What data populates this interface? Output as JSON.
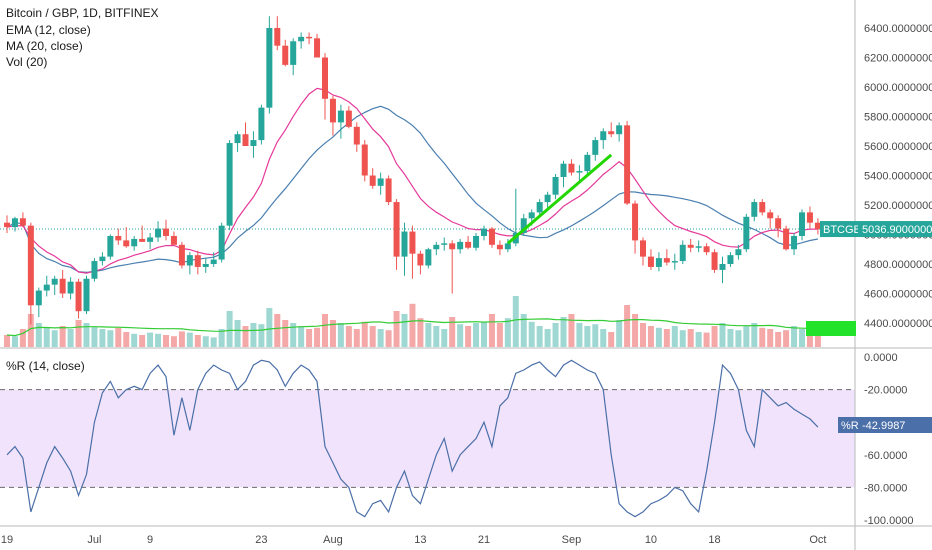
{
  "chart_data": {
    "type": "candlestick",
    "title": "Bitcoin / GBP, 1D, BITFINEX",
    "symbol_tag": "BTCGBP",
    "last_price": "5036.90000000",
    "indicator_labels": [
      "EMA (12, close)",
      "MA (20, close)",
      "Vol (20)"
    ],
    "volume_tag": "",
    "price_axis": {
      "ticks": [
        "6400.00000000",
        "6200.00000000",
        "6000.00000000",
        "5800.00000000",
        "5600.00000000",
        "5400.00000000",
        "5200.00000000",
        "5000.00000000",
        "4800.00000000",
        "4600.00000000",
        "4400.00000000"
      ],
      "ylim": [
        4300,
        6550
      ]
    },
    "date_axis": {
      "ticks": [
        "19",
        "Jul",
        "9",
        "23",
        "Aug",
        "13",
        "21",
        "Sep",
        "10",
        "18",
        "Oct"
      ],
      "tick_index": [
        0,
        11,
        18,
        32,
        41,
        52,
        60,
        71,
        81,
        89,
        102
      ]
    },
    "candles": [
      {
        "o": 5080,
        "h": 5130,
        "l": 5010,
        "c": 5050
      },
      {
        "o": 5050,
        "h": 5120,
        "l": 5020,
        "c": 5110
      },
      {
        "o": 5110,
        "h": 5150,
        "l": 5050,
        "c": 5060
      },
      {
        "o": 5060,
        "h": 5080,
        "l": 4390,
        "c": 4520
      },
      {
        "o": 4520,
        "h": 4640,
        "l": 4440,
        "c": 4620
      },
      {
        "o": 4620,
        "h": 4720,
        "l": 4580,
        "c": 4660
      },
      {
        "o": 4660,
        "h": 4720,
        "l": 4590,
        "c": 4700
      },
      {
        "o": 4700,
        "h": 4760,
        "l": 4570,
        "c": 4600
      },
      {
        "o": 4600,
        "h": 4710,
        "l": 4560,
        "c": 4680
      },
      {
        "o": 4680,
        "h": 4700,
        "l": 4430,
        "c": 4480
      },
      {
        "o": 4480,
        "h": 4720,
        "l": 4460,
        "c": 4700
      },
      {
        "o": 4700,
        "h": 4840,
        "l": 4680,
        "c": 4820
      },
      {
        "o": 4820,
        "h": 4880,
        "l": 4790,
        "c": 4850
      },
      {
        "o": 4850,
        "h": 5000,
        "l": 4830,
        "c": 4990
      },
      {
        "o": 4990,
        "h": 5040,
        "l": 4930,
        "c": 4960
      },
      {
        "o": 4960,
        "h": 5050,
        "l": 4910,
        "c": 4920
      },
      {
        "o": 4920,
        "h": 4990,
        "l": 4890,
        "c": 4970
      },
      {
        "o": 4970,
        "h": 5060,
        "l": 4950,
        "c": 4950
      },
      {
        "o": 4950,
        "h": 5010,
        "l": 4900,
        "c": 4980
      },
      {
        "o": 4980,
        "h": 5090,
        "l": 4950,
        "c": 5040
      },
      {
        "o": 5040,
        "h": 5100,
        "l": 4960,
        "c": 4990
      },
      {
        "o": 4990,
        "h": 5020,
        "l": 4940,
        "c": 4930
      },
      {
        "o": 4930,
        "h": 4950,
        "l": 4770,
        "c": 4790
      },
      {
        "o": 4790,
        "h": 4880,
        "l": 4730,
        "c": 4860
      },
      {
        "o": 4860,
        "h": 4890,
        "l": 4730,
        "c": 4780
      },
      {
        "o": 4780,
        "h": 4840,
        "l": 4740,
        "c": 4800
      },
      {
        "o": 4800,
        "h": 4880,
        "l": 4780,
        "c": 4830
      },
      {
        "o": 4830,
        "h": 5080,
        "l": 4810,
        "c": 5060
      },
      {
        "o": 5060,
        "h": 5640,
        "l": 5030,
        "c": 5620
      },
      {
        "o": 5620,
        "h": 5700,
        "l": 5560,
        "c": 5680
      },
      {
        "o": 5680,
        "h": 5760,
        "l": 5600,
        "c": 5600
      },
      {
        "o": 5600,
        "h": 5700,
        "l": 5520,
        "c": 5640
      },
      {
        "o": 5640,
        "h": 5880,
        "l": 5610,
        "c": 5860
      },
      {
        "o": 5860,
        "h": 6480,
        "l": 5820,
        "c": 6400
      },
      {
        "o": 6400,
        "h": 6480,
        "l": 6250,
        "c": 6280
      },
      {
        "o": 6280,
        "h": 6320,
        "l": 6140,
        "c": 6150
      },
      {
        "o": 6150,
        "h": 6330,
        "l": 6080,
        "c": 6310
      },
      {
        "o": 6310,
        "h": 6370,
        "l": 6260,
        "c": 6340
      },
      {
        "o": 6340,
        "h": 6370,
        "l": 6290,
        "c": 6330
      },
      {
        "o": 6330,
        "h": 6360,
        "l": 6220,
        "c": 6200
      },
      {
        "o": 6200,
        "h": 6230,
        "l": 5780,
        "c": 5920
      },
      {
        "o": 5920,
        "h": 5940,
        "l": 5670,
        "c": 5760
      },
      {
        "o": 5760,
        "h": 5880,
        "l": 5650,
        "c": 5840
      },
      {
        "o": 5840,
        "h": 5870,
        "l": 5720,
        "c": 5730
      },
      {
        "o": 5730,
        "h": 5760,
        "l": 5560,
        "c": 5610
      },
      {
        "o": 5610,
        "h": 5640,
        "l": 5360,
        "c": 5400
      },
      {
        "o": 5400,
        "h": 5450,
        "l": 5310,
        "c": 5330
      },
      {
        "o": 5330,
        "h": 5420,
        "l": 5270,
        "c": 5380
      },
      {
        "o": 5380,
        "h": 5400,
        "l": 5200,
        "c": 5220
      },
      {
        "o": 5220,
        "h": 5240,
        "l": 4760,
        "c": 4850
      },
      {
        "o": 4850,
        "h": 5080,
        "l": 4720,
        "c": 5020
      },
      {
        "o": 5020,
        "h": 5060,
        "l": 4700,
        "c": 4870
      },
      {
        "o": 4870,
        "h": 4890,
        "l": 4730,
        "c": 4790
      },
      {
        "o": 4790,
        "h": 4910,
        "l": 4770,
        "c": 4900
      },
      {
        "o": 4900,
        "h": 4950,
        "l": 4860,
        "c": 4930
      },
      {
        "o": 4930,
        "h": 4980,
        "l": 4890,
        "c": 4940
      },
      {
        "o": 4940,
        "h": 4960,
        "l": 4600,
        "c": 4900
      },
      {
        "o": 4900,
        "h": 4970,
        "l": 4870,
        "c": 4950
      },
      {
        "o": 4950,
        "h": 4990,
        "l": 4900,
        "c": 4910
      },
      {
        "o": 4910,
        "h": 5010,
        "l": 4890,
        "c": 4990
      },
      {
        "o": 4990,
        "h": 5060,
        "l": 4960,
        "c": 5040
      },
      {
        "o": 5040,
        "h": 5050,
        "l": 4910,
        "c": 4930
      },
      {
        "o": 4930,
        "h": 4960,
        "l": 4860,
        "c": 4900
      },
      {
        "o": 4900,
        "h": 4970,
        "l": 4880,
        "c": 4940
      },
      {
        "o": 4940,
        "h": 5310,
        "l": 4920,
        "c": 5010
      },
      {
        "o": 5010,
        "h": 5140,
        "l": 4990,
        "c": 5110
      },
      {
        "o": 5110,
        "h": 5170,
        "l": 5060,
        "c": 5150
      },
      {
        "o": 5150,
        "h": 5240,
        "l": 5120,
        "c": 5220
      },
      {
        "o": 5220,
        "h": 5290,
        "l": 5180,
        "c": 5270
      },
      {
        "o": 5270,
        "h": 5410,
        "l": 5240,
        "c": 5390
      },
      {
        "o": 5390,
        "h": 5500,
        "l": 5320,
        "c": 5480
      },
      {
        "o": 5480,
        "h": 5510,
        "l": 5400,
        "c": 5420
      },
      {
        "o": 5420,
        "h": 5470,
        "l": 5360,
        "c": 5430
      },
      {
        "o": 5430,
        "h": 5560,
        "l": 5400,
        "c": 5540
      },
      {
        "o": 5540,
        "h": 5660,
        "l": 5500,
        "c": 5640
      },
      {
        "o": 5640,
        "h": 5720,
        "l": 5580,
        "c": 5700
      },
      {
        "o": 5700,
        "h": 5760,
        "l": 5660,
        "c": 5680
      },
      {
        "o": 5680,
        "h": 5760,
        "l": 5630,
        "c": 5740
      },
      {
        "o": 5740,
        "h": 5770,
        "l": 5200,
        "c": 5210
      },
      {
        "o": 5210,
        "h": 5230,
        "l": 4870,
        "c": 4960
      },
      {
        "o": 4960,
        "h": 4980,
        "l": 4790,
        "c": 4850
      },
      {
        "o": 4850,
        "h": 4900,
        "l": 4760,
        "c": 4780
      },
      {
        "o": 4780,
        "h": 4880,
        "l": 4750,
        "c": 4840
      },
      {
        "o": 4840,
        "h": 4900,
        "l": 4790,
        "c": 4810
      },
      {
        "o": 4810,
        "h": 4870,
        "l": 4760,
        "c": 4820
      },
      {
        "o": 4820,
        "h": 4960,
        "l": 4800,
        "c": 4930
      },
      {
        "o": 4930,
        "h": 4970,
        "l": 4880,
        "c": 4910
      },
      {
        "o": 4910,
        "h": 4960,
        "l": 4880,
        "c": 4920
      },
      {
        "o": 4920,
        "h": 4940,
        "l": 4860,
        "c": 4880
      },
      {
        "o": 4880,
        "h": 4900,
        "l": 4740,
        "c": 4760
      },
      {
        "o": 4760,
        "h": 4850,
        "l": 4670,
        "c": 4800
      },
      {
        "o": 4800,
        "h": 4880,
        "l": 4780,
        "c": 4860
      },
      {
        "o": 4860,
        "h": 4930,
        "l": 4830,
        "c": 4900
      },
      {
        "o": 4900,
        "h": 5140,
        "l": 4880,
        "c": 5120
      },
      {
        "o": 5120,
        "h": 5240,
        "l": 5090,
        "c": 5220
      },
      {
        "o": 5220,
        "h": 5240,
        "l": 5130,
        "c": 5150
      },
      {
        "o": 5150,
        "h": 5170,
        "l": 5040,
        "c": 5110
      },
      {
        "o": 5110,
        "h": 5130,
        "l": 4980,
        "c": 5040
      },
      {
        "o": 5040,
        "h": 5060,
        "l": 4890,
        "c": 4900
      },
      {
        "o": 4900,
        "h": 5010,
        "l": 4860,
        "c": 4990
      },
      {
        "o": 4990,
        "h": 5170,
        "l": 4960,
        "c": 5150
      },
      {
        "o": 5150,
        "h": 5190,
        "l": 5040,
        "c": 5080
      },
      {
        "o": 5080,
        "h": 5110,
        "l": 5000,
        "c": 5037
      }
    ],
    "volume": [
      0.2,
      0.18,
      0.3,
      0.55,
      0.4,
      0.32,
      0.28,
      0.35,
      0.3,
      0.45,
      0.4,
      0.33,
      0.3,
      0.28,
      0.32,
      0.25,
      0.22,
      0.2,
      0.24,
      0.22,
      0.2,
      0.18,
      0.26,
      0.24,
      0.2,
      0.18,
      0.16,
      0.3,
      0.6,
      0.45,
      0.35,
      0.4,
      0.38,
      0.65,
      0.55,
      0.45,
      0.4,
      0.35,
      0.3,
      0.32,
      0.55,
      0.45,
      0.4,
      0.35,
      0.3,
      0.42,
      0.35,
      0.3,
      0.28,
      0.6,
      0.55,
      0.72,
      0.48,
      0.4,
      0.35,
      0.3,
      0.5,
      0.38,
      0.35,
      0.4,
      0.42,
      0.55,
      0.4,
      0.48,
      0.85,
      0.55,
      0.42,
      0.35,
      0.3,
      0.4,
      0.5,
      0.55,
      0.4,
      0.35,
      0.38,
      0.3,
      0.25,
      0.45,
      0.7,
      0.55,
      0.4,
      0.35,
      0.32,
      0.3,
      0.35,
      0.28,
      0.3,
      0.25,
      0.24,
      0.35,
      0.4,
      0.3,
      0.28,
      0.35,
      0.4,
      0.32,
      0.3,
      0.25,
      0.28,
      0.35,
      0.3,
      0.28,
      0.25
    ],
    "wr_axis": {
      "title": "%R (14, close)",
      "ticks": [
        "0.0000",
        "-20.0000",
        "-40.0000",
        "-60.0000",
        "-80.0000",
        "-100.0000"
      ],
      "ylim": [
        -100,
        0
      ],
      "band": [
        -80,
        -20
      ],
      "tag_label": "%R",
      "last_value": "-42.9987"
    },
    "wr_values": [
      -60,
      -55,
      -62,
      -95,
      -80,
      -65,
      -55,
      -62,
      -70,
      -85,
      -72,
      -40,
      -22,
      -15,
      -25,
      -20,
      -18,
      -20,
      -10,
      -5,
      -12,
      -48,
      -25,
      -45,
      -20,
      -10,
      -5,
      -8,
      -10,
      -20,
      -15,
      -5,
      -2,
      -3,
      -8,
      -18,
      -10,
      -5,
      -8,
      -15,
      -55,
      -65,
      -75,
      -80,
      -95,
      -98,
      -90,
      -88,
      -95,
      -80,
      -70,
      -85,
      -90,
      -75,
      -60,
      -50,
      -70,
      -60,
      -55,
      -50,
      -40,
      -55,
      -30,
      -25,
      -10,
      -8,
      -5,
      -3,
      -8,
      -12,
      -5,
      -2,
      -5,
      -8,
      -10,
      -20,
      -60,
      -90,
      -95,
      -98,
      -95,
      -90,
      -88,
      -85,
      -80,
      -82,
      -90,
      -95,
      -70,
      -40,
      -5,
      -10,
      -20,
      -45,
      -55,
      -20,
      -25,
      -30,
      -28,
      -32,
      -35,
      -38,
      -43
    ]
  }
}
